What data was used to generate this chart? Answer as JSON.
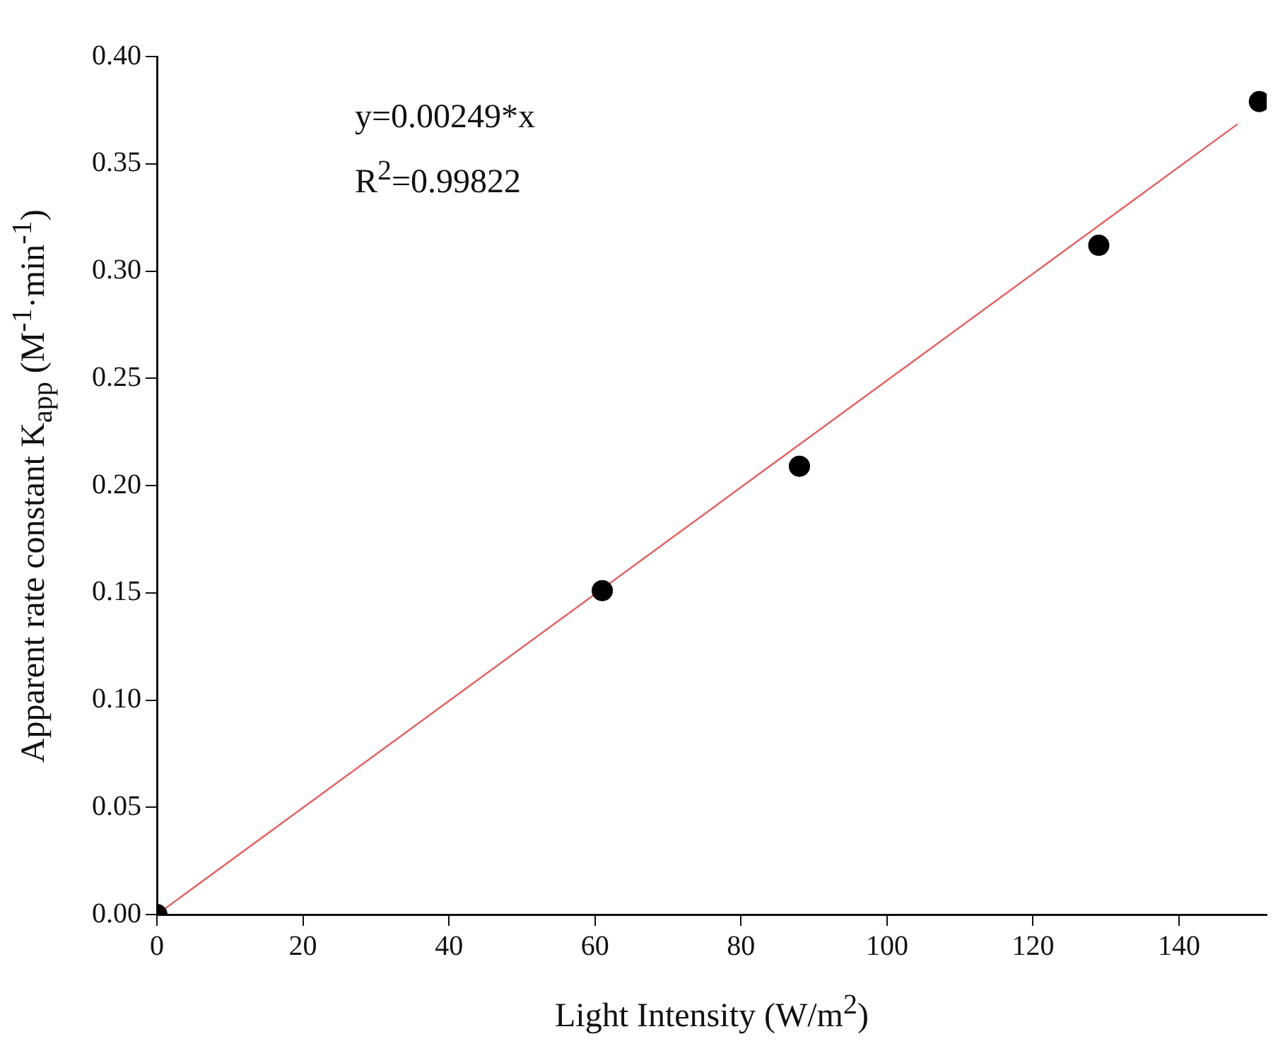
{
  "chart_data": {
    "type": "scatter",
    "xlabel": "Light Intensity (W/m$^{2}$)",
    "ylabel": "Apparent rate constant K$_{app}$ (M$^{-1}$·min$^{-1}$)",
    "annotations": [
      "y=0.00249*x",
      "R$^{2}$=0.99822"
    ],
    "xlim": [
      0,
      152
    ],
    "xticks": [
      0,
      20,
      40,
      60,
      80,
      100,
      120,
      140
    ],
    "ylim": [
      0,
      0.4
    ],
    "yticks": [
      {
        "value": 0,
        "label": "0.00"
      },
      {
        "value": 0.05,
        "label": "0.05"
      },
      {
        "value": 0.1,
        "label": "0.10"
      },
      {
        "value": 0.15,
        "label": "0.15"
      },
      {
        "value": 0.2,
        "label": "0.20"
      },
      {
        "value": 0.25,
        "label": "0.25"
      },
      {
        "value": 0.3,
        "label": "0.30"
      },
      {
        "value": 0.35,
        "label": "0.35"
      },
      {
        "value": 0.4,
        "label": "0.40"
      }
    ],
    "grid": false,
    "legend": false,
    "marker": "circle",
    "series": [
      {
        "color": "#000000",
        "x": [
          0,
          61,
          88,
          129,
          151
        ],
        "values": [
          0,
          0.151,
          0.209,
          0.312,
          0.379
        ]
      },
      {
        "type": "line",
        "color": "#e06060",
        "line_style": "solid",
        "marker": "none",
        "x": [
          0,
          148
        ],
        "values": [
          0,
          0.3685
        ]
      }
    ]
  }
}
